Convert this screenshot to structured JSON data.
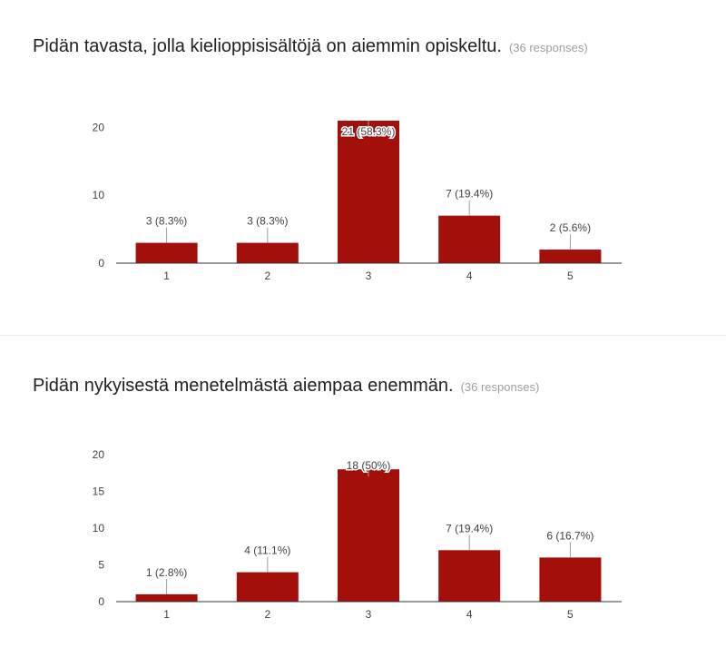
{
  "questions": [
    {
      "title": "Pidän tavasta, jolla kielioppisisältöjä on aiemmin opiskeltu.",
      "responses": "(36 responses)"
    },
    {
      "title": "Pidän nykyisestä menetelmästä aiempaa enemmän.",
      "responses": "(36 responses)"
    }
  ],
  "colors": {
    "bar": "#a30f0b",
    "axis": "#333333",
    "label": "#424242",
    "leader": "#9e9e9e"
  },
  "chart_data": [
    {
      "type": "bar",
      "title": "Pidän tavasta, jolla kielioppisisältöjä on aiemmin opiskeltu.",
      "categories": [
        "1",
        "2",
        "3",
        "4",
        "5"
      ],
      "values": [
        3,
        3,
        21,
        7,
        2
      ],
      "data_labels": [
        "3 (8.3%)",
        "3 (8.3%)",
        "21 (58.3%)",
        "7 (19.4%)",
        "2 (5.6%)"
      ],
      "yticks": [
        0,
        10,
        20
      ],
      "ylim": [
        0,
        21
      ],
      "grid": false,
      "legend": "none"
    },
    {
      "type": "bar",
      "title": "Pidän nykyisestä menetelmästä aiempaa enemmän.",
      "categories": [
        "1",
        "2",
        "3",
        "4",
        "5"
      ],
      "values": [
        1,
        4,
        18,
        7,
        6
      ],
      "data_labels": [
        "1 (2.8%)",
        "4 (11.1%)",
        "18 (50%)",
        "7 (19.4%)",
        "6 (16.7%)"
      ],
      "yticks": [
        0,
        5,
        10,
        15,
        20
      ],
      "ylim": [
        0,
        20
      ],
      "grid": false,
      "legend": "none"
    }
  ]
}
